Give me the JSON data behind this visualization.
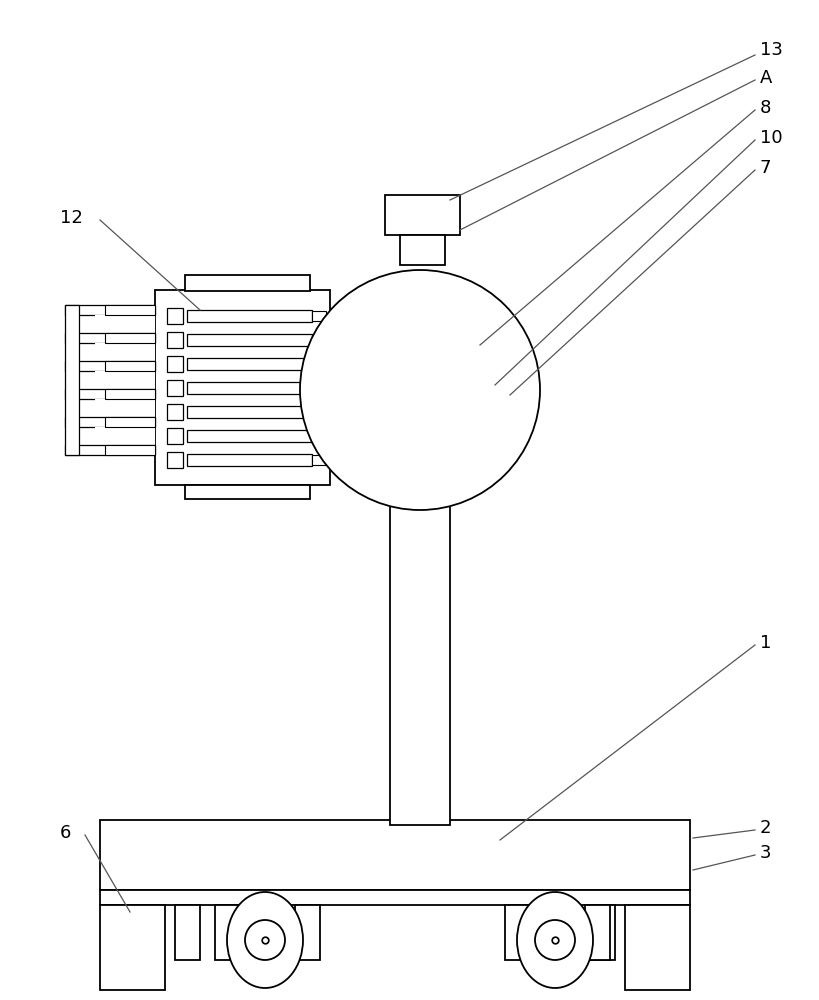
{
  "bg_color": "#ffffff",
  "line_color": "#000000",
  "line_width": 1.3,
  "fig_width": 8.2,
  "fig_height": 10.0
}
